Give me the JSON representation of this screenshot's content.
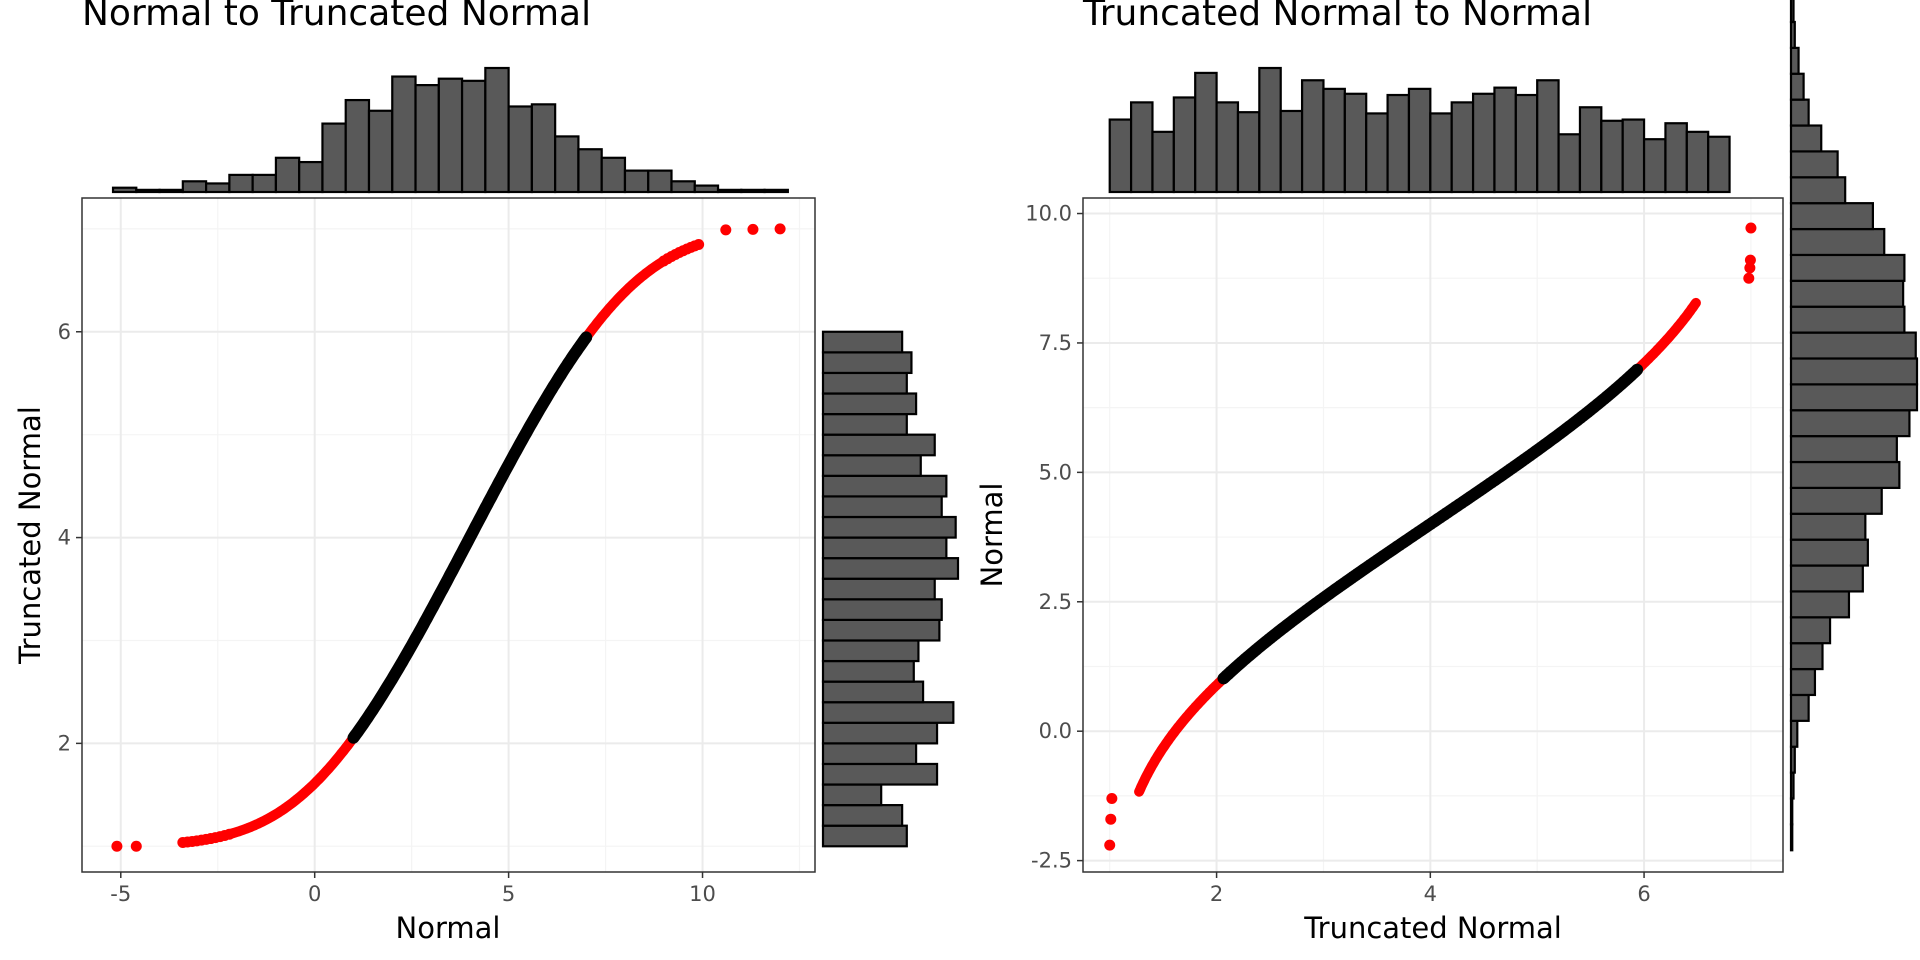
{
  "chart_data": [
    {
      "type": "scatter",
      "title": "Normal to Truncated Normal",
      "xlabel": "Normal",
      "ylabel": "Truncated Normal",
      "xlim": [
        -6,
        12.9
      ],
      "ylim": [
        0.75,
        7.3
      ],
      "xticks": [
        -5,
        0,
        5,
        10
      ],
      "xtick_labels": [
        "-5",
        "0",
        "5",
        "10"
      ],
      "yticks": [
        2,
        4,
        6
      ],
      "ytick_labels": [
        "2",
        "4",
        "6"
      ],
      "grid": true,
      "truncation": {
        "lower": 1,
        "upper": 7
      },
      "highlight_rule": "red where Normal outside [1, 7]",
      "colors": {
        "inside": "#000000",
        "outside": "#ff0000"
      },
      "outlier_points": [
        {
          "x": -5.1,
          "y": 1.0
        },
        {
          "x": -4.6,
          "y": 1.0
        },
        {
          "x": 10.6,
          "y": 6.99
        },
        {
          "x": 11.3,
          "y": 6.995
        },
        {
          "x": 12.0,
          "y": 7.0
        }
      ],
      "marginal_top": {
        "variable": "Normal",
        "bin_start": -5.2,
        "bin_width": 0.6,
        "counts": [
          2,
          1,
          1,
          5,
          4,
          8,
          8,
          16,
          14,
          32,
          43,
          38,
          54,
          50,
          53,
          52,
          58,
          40,
          41,
          26,
          20,
          16,
          10,
          10,
          5,
          3,
          1,
          1,
          1
        ]
      },
      "marginal_right": {
        "variable": "Truncated Normal",
        "bin_start": 1.0,
        "bin_width": 0.2,
        "counts": [
          36,
          34,
          25,
          49,
          40,
          49,
          56,
          43,
          39,
          41,
          50,
          51,
          48,
          58,
          53,
          57,
          51,
          53,
          42,
          48,
          36,
          40,
          36,
          38,
          34
        ]
      }
    },
    {
      "type": "scatter",
      "title": "Truncated Normal to Normal",
      "xlabel": "Truncated Normal",
      "ylabel": "Normal",
      "xlim": [
        0.75,
        7.3
      ],
      "ylim": [
        -2.72,
        10.3
      ],
      "xticks": [
        2,
        4,
        6
      ],
      "xtick_labels": [
        "2",
        "4",
        "6"
      ],
      "yticks": [
        -2.5,
        0.0,
        2.5,
        5.0,
        7.5,
        10.0
      ],
      "ytick_labels": [
        "-2.5",
        "0.0",
        "2.5",
        "5.0",
        "7.5",
        "10.0"
      ],
      "grid": true,
      "highlight_rule": "red where Normal outside [1, 7]",
      "colors": {
        "inside": "#000000",
        "outside": "#ff0000"
      },
      "outlier_points": [
        {
          "x": 1.0,
          "y": -2.2
        },
        {
          "x": 1.01,
          "y": -1.7
        },
        {
          "x": 1.02,
          "y": -1.3
        },
        {
          "x": 6.98,
          "y": 8.75
        },
        {
          "x": 6.99,
          "y": 8.95
        },
        {
          "x": 6.995,
          "y": 9.1
        },
        {
          "x": 7.0,
          "y": 9.72
        }
      ],
      "marginal_top": {
        "variable": "Truncated Normal",
        "bin_start": 1.0,
        "bin_width": 0.2,
        "counts": [
          59,
          73,
          49,
          77,
          97,
          73,
          65,
          101,
          66,
          91,
          84,
          80,
          64,
          79,
          84,
          64,
          73,
          80,
          85,
          79,
          91,
          47,
          69,
          58,
          59,
          43,
          56,
          49,
          45
        ]
      },
      "marginal_right": {
        "variable": "Normal",
        "bin_start": -2.3,
        "bin_width": 0.5,
        "counts": [
          1,
          1,
          2,
          3,
          5,
          14,
          19,
          25,
          31,
          46,
          57,
          61,
          59,
          72,
          86,
          84,
          94,
          100,
          100,
          99,
          90,
          89,
          90,
          74,
          65,
          43,
          37,
          24,
          14,
          10,
          6,
          3,
          2,
          2,
          1
        ]
      }
    }
  ]
}
